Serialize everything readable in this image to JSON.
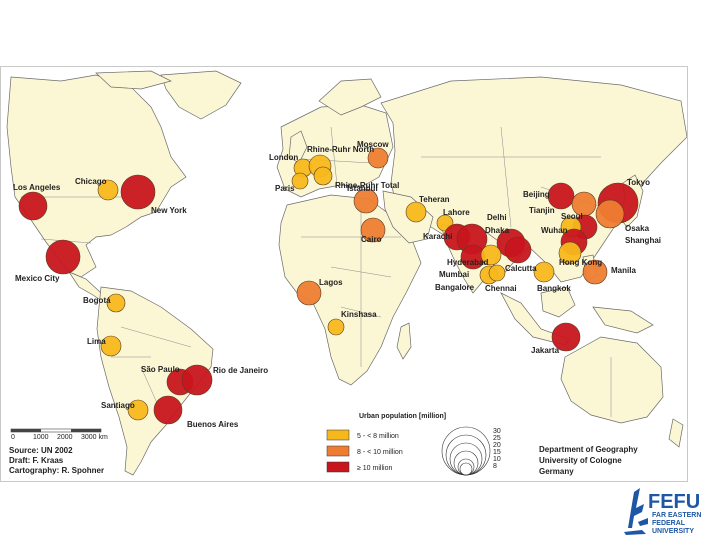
{
  "colors": {
    "small": "#f7b81c",
    "medium": "#ee7d33",
    "large": "#c8161d",
    "land": "#fbf6d4",
    "logo": "#1e57a6"
  },
  "cities": [
    {
      "name": "Los Angeles",
      "cat": "large"
    },
    {
      "name": "Chicago",
      "cat": "small"
    },
    {
      "name": "New York",
      "cat": "large"
    },
    {
      "name": "Mexico City",
      "cat": "large"
    },
    {
      "name": "Bogotá",
      "cat": "small"
    },
    {
      "name": "Lima",
      "cat": "small"
    },
    {
      "name": "São Paulo",
      "cat": "large"
    },
    {
      "name": "Rio de Janeiro",
      "cat": "large"
    },
    {
      "name": "Santiago",
      "cat": "small"
    },
    {
      "name": "Buenos Aires",
      "cat": "large"
    },
    {
      "name": "London",
      "cat": "small"
    },
    {
      "name": "Paris",
      "cat": "small"
    },
    {
      "name": "Rhine-Ruhr North",
      "cat": "small"
    },
    {
      "name": "Rhine-Ruhr Total",
      "cat": "small"
    },
    {
      "name": "Moscow",
      "cat": "medium"
    },
    {
      "name": "Istanbul",
      "cat": "medium"
    },
    {
      "name": "Teheran",
      "cat": "small"
    },
    {
      "name": "Cairo",
      "cat": "medium"
    },
    {
      "name": "Lagos",
      "cat": "medium"
    },
    {
      "name": "Kinshasa",
      "cat": "small"
    },
    {
      "name": "Lahore",
      "cat": "small"
    },
    {
      "name": "Karachi",
      "cat": "large"
    },
    {
      "name": "Delhi",
      "cat": "large"
    },
    {
      "name": "Dhaka",
      "cat": "large"
    },
    {
      "name": "Mumbai",
      "cat": "large"
    },
    {
      "name": "Hyderabad",
      "cat": "small"
    },
    {
      "name": "Bangalore",
      "cat": "small"
    },
    {
      "name": "Chennai",
      "cat": "small"
    },
    {
      "name": "Calcutta",
      "cat": "large"
    },
    {
      "name": "Bangkok",
      "cat": "small"
    },
    {
      "name": "Beijing",
      "cat": "large"
    },
    {
      "name": "Tianjin",
      "cat": "medium"
    },
    {
      "name": "Seoul",
      "cat": "large"
    },
    {
      "name": "Tokyo",
      "cat": "large"
    },
    {
      "name": "Osaka",
      "cat": "medium"
    },
    {
      "name": "Wuhan",
      "cat": "small"
    },
    {
      "name": "Shanghai",
      "cat": "large"
    },
    {
      "name": "Hong Kong",
      "cat": "small"
    },
    {
      "name": "Manila",
      "cat": "medium"
    },
    {
      "name": "Jakarta",
      "cat": "large"
    }
  ],
  "legend": {
    "title": "Urban population [million]",
    "cat_small": "5 - < 8 million",
    "cat_medium": "8 - < 10 million",
    "cat_large": "≥ 10 million",
    "sizes": [
      "30",
      "25",
      "20",
      "15",
      "10",
      "8"
    ]
  },
  "scale": {
    "ticks": [
      "0",
      "1000",
      "2000",
      "3000 km"
    ]
  },
  "credits": {
    "source": "Source: UN 2002",
    "draft": "Draft: F. Kraas",
    "cartography": "Cartography: R. Spohner"
  },
  "department": {
    "line1": "Department of Geography",
    "line2": "University of Cologne",
    "line3": "Germany"
  },
  "logo": {
    "big": "FEFU",
    "line1": "FAR EASTERN",
    "line2": "FEDERAL",
    "line3": "UNIVERSITY"
  }
}
